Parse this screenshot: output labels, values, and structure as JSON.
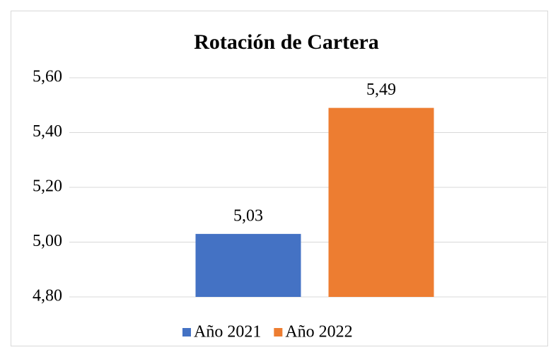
{
  "chart_data": {
    "type": "bar",
    "title": "Rotación de Cartera",
    "categories": [
      null
    ],
    "series": [
      {
        "name": "Año 2021",
        "color": "#4472c4",
        "values": [
          5.03
        ],
        "value_labels": [
          "5,03"
        ]
      },
      {
        "name": "Año 2022",
        "color": "#ed7d31",
        "values": [
          5.49
        ],
        "value_labels": [
          "5,49"
        ]
      }
    ],
    "ylim": [
      4.8,
      5.6
    ],
    "yticks": [
      {
        "value": 4.8,
        "label": "4,80"
      },
      {
        "value": 5.0,
        "label": "5,00"
      },
      {
        "value": 5.2,
        "label": "5,20"
      },
      {
        "value": 5.4,
        "label": "5,40"
      },
      {
        "value": 5.6,
        "label": "5,60"
      }
    ],
    "grid": true,
    "legend": "bottom"
  }
}
